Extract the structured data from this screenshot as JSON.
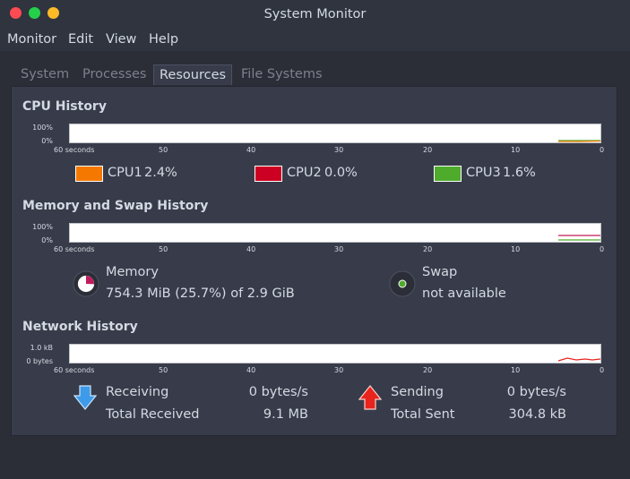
{
  "window": {
    "title": "System Monitor"
  },
  "menu": [
    "Monitor",
    "Edit",
    "View",
    "Help"
  ],
  "tabs": [
    {
      "label": "System"
    },
    {
      "label": "Processes"
    },
    {
      "label": "Resources"
    },
    {
      "label": "File Systems"
    }
  ],
  "active_tab": "Resources",
  "cpu": {
    "title": "CPU History",
    "y_labels": [
      "100%",
      "0%"
    ],
    "x_labels": [
      "60 seconds",
      "50",
      "40",
      "30",
      "20",
      "10",
      "0"
    ],
    "cpus": [
      {
        "label": "CPU1",
        "value": "2.4%",
        "color": "#f57900"
      },
      {
        "label": "CPU2",
        "value": "0.0%",
        "color": "#cc0022"
      },
      {
        "label": "CPU3",
        "value": "1.6%",
        "color": "#4eab2c"
      }
    ]
  },
  "memory": {
    "title": "Memory and Swap History",
    "y_labels": [
      "100%",
      "0%"
    ],
    "x_labels": [
      "60 seconds",
      "50",
      "40",
      "30",
      "20",
      "10",
      "0"
    ],
    "memory_label": "Memory",
    "memory_value": "754.3 MiB (25.7%) of 2.9 GiB",
    "memory_fraction": 0.257,
    "memory_color": "#c01c5c",
    "swap_label": "Swap",
    "swap_value": "not available",
    "swap_color": "#4eab2c"
  },
  "network": {
    "title": "Network History",
    "y_labels": [
      "1.0 kB",
      "0 bytes"
    ],
    "x_labels": [
      "60 seconds",
      "50",
      "40",
      "30",
      "20",
      "10",
      "0"
    ],
    "receiving_label": "Receiving",
    "receiving_value": "0 bytes/s",
    "total_received_label": "Total Received",
    "total_received_value": "9.1 MB",
    "sending_label": "Sending",
    "sending_value": "0 bytes/s",
    "total_sent_label": "Total Sent",
    "total_sent_value": "304.8 kB",
    "receive_color": "#2a8de0",
    "send_color": "#e8241c"
  }
}
